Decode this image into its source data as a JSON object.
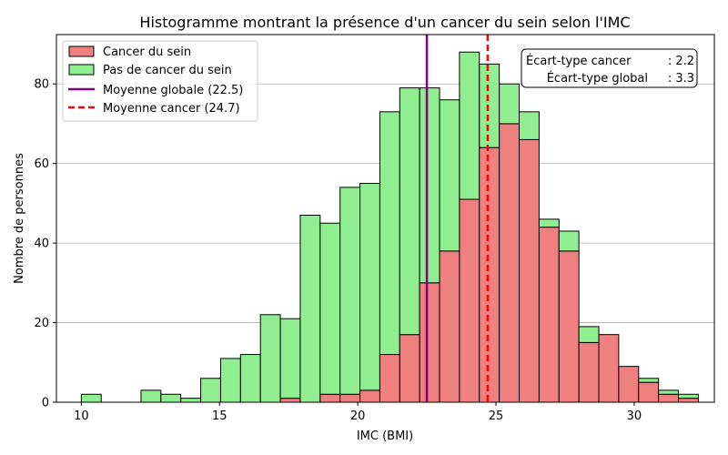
{
  "chart_data": {
    "type": "bar",
    "title": "Histogramme montrant la présence d'un cancer du sein selon l'IMC",
    "xlabel": "IMC (BMI)",
    "ylabel": "Nombre de personnes",
    "xlim": [
      9.1,
      32.9
    ],
    "ylim": [
      0,
      92.4
    ],
    "xticks": [
      10,
      15,
      20,
      25,
      30
    ],
    "yticks": [
      0,
      20,
      40,
      60,
      80
    ],
    "grid": "horizontal",
    "legend_position": "top-left",
    "bin_start": 10.0,
    "bin_width": 0.72,
    "series": [
      {
        "name": "Cancer du sein",
        "color": "#f08080",
        "values": [
          0,
          0,
          0,
          0,
          0,
          0,
          0,
          0,
          0,
          0,
          1,
          0,
          2,
          2,
          3,
          12,
          17,
          30,
          38,
          51,
          64,
          70,
          66,
          44,
          38,
          15,
          17,
          9,
          5,
          2,
          1
        ]
      },
      {
        "name": "Pas de cancer du sein",
        "color": "#90ee90",
        "values": [
          2,
          0,
          0,
          3,
          2,
          1,
          6,
          11,
          12,
          22,
          20,
          47,
          43,
          52,
          52,
          61,
          62,
          49,
          38,
          37,
          21,
          10,
          7,
          2,
          5,
          4,
          0,
          0,
          1,
          1,
          1
        ]
      }
    ],
    "lines": [
      {
        "name": "Moyenne globale (22.5)",
        "x": 22.5,
        "color": "#800080",
        "style": "solid"
      },
      {
        "name": "Moyenne cancer (24.7)",
        "x": 24.7,
        "color": "#ff0000",
        "style": "dashed"
      }
    ],
    "stats_box": [
      {
        "label": "Écart-type cancer",
        "value": ": 2.2"
      },
      {
        "label": "Écart-type global",
        "value": ": 3.3"
      }
    ]
  }
}
